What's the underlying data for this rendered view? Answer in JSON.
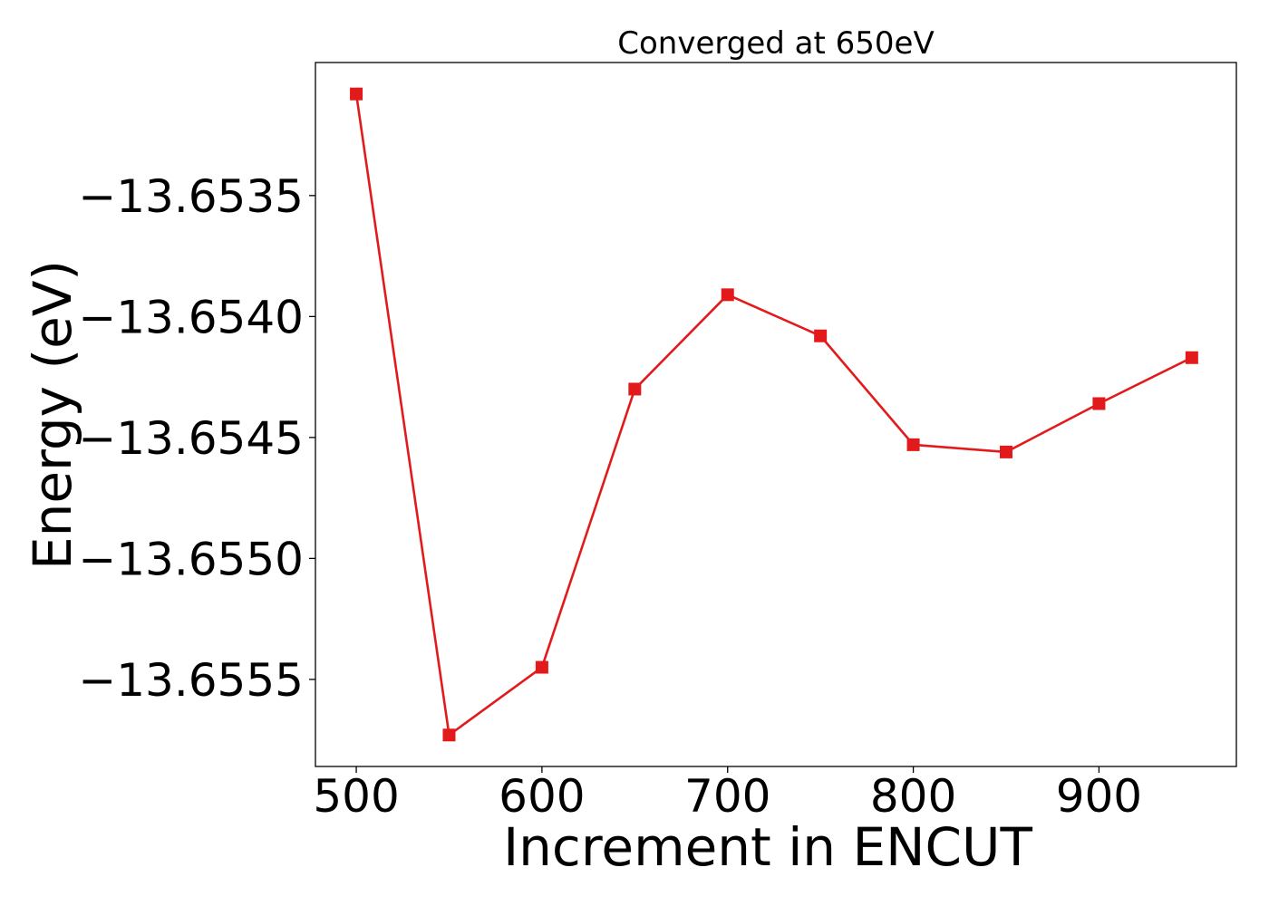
{
  "chart_data": {
    "type": "line",
    "title": "Converged at 650eV",
    "xlabel": "Increment in ENCUT",
    "ylabel": "Energy (eV)",
    "x": [
      500,
      550,
      600,
      650,
      700,
      750,
      800,
      850,
      900,
      950
    ],
    "series": [
      {
        "values": [
          -13.65308,
          -13.65573,
          -13.65545,
          -13.6543,
          -13.65391,
          -13.65408,
          -13.65453,
          -13.65456,
          -13.65436,
          -13.65417
        ],
        "color": "#e31a1c",
        "marker": "square"
      }
    ],
    "xlim": [
      478,
      974
    ],
    "ylim": [
      -13.65586,
      -13.65295
    ],
    "xticks": [
      500,
      600,
      700,
      800,
      900
    ],
    "xtick_labels": [
      "500",
      "600",
      "700",
      "800",
      "900"
    ],
    "yticks": [
      -13.6535,
      -13.654,
      -13.6545,
      -13.655,
      -13.6555
    ],
    "ytick_labels": [
      "−13.6535",
      "−13.6540",
      "−13.6545",
      "−13.6550",
      "−13.6555"
    ],
    "grid": false,
    "legend": "none"
  }
}
